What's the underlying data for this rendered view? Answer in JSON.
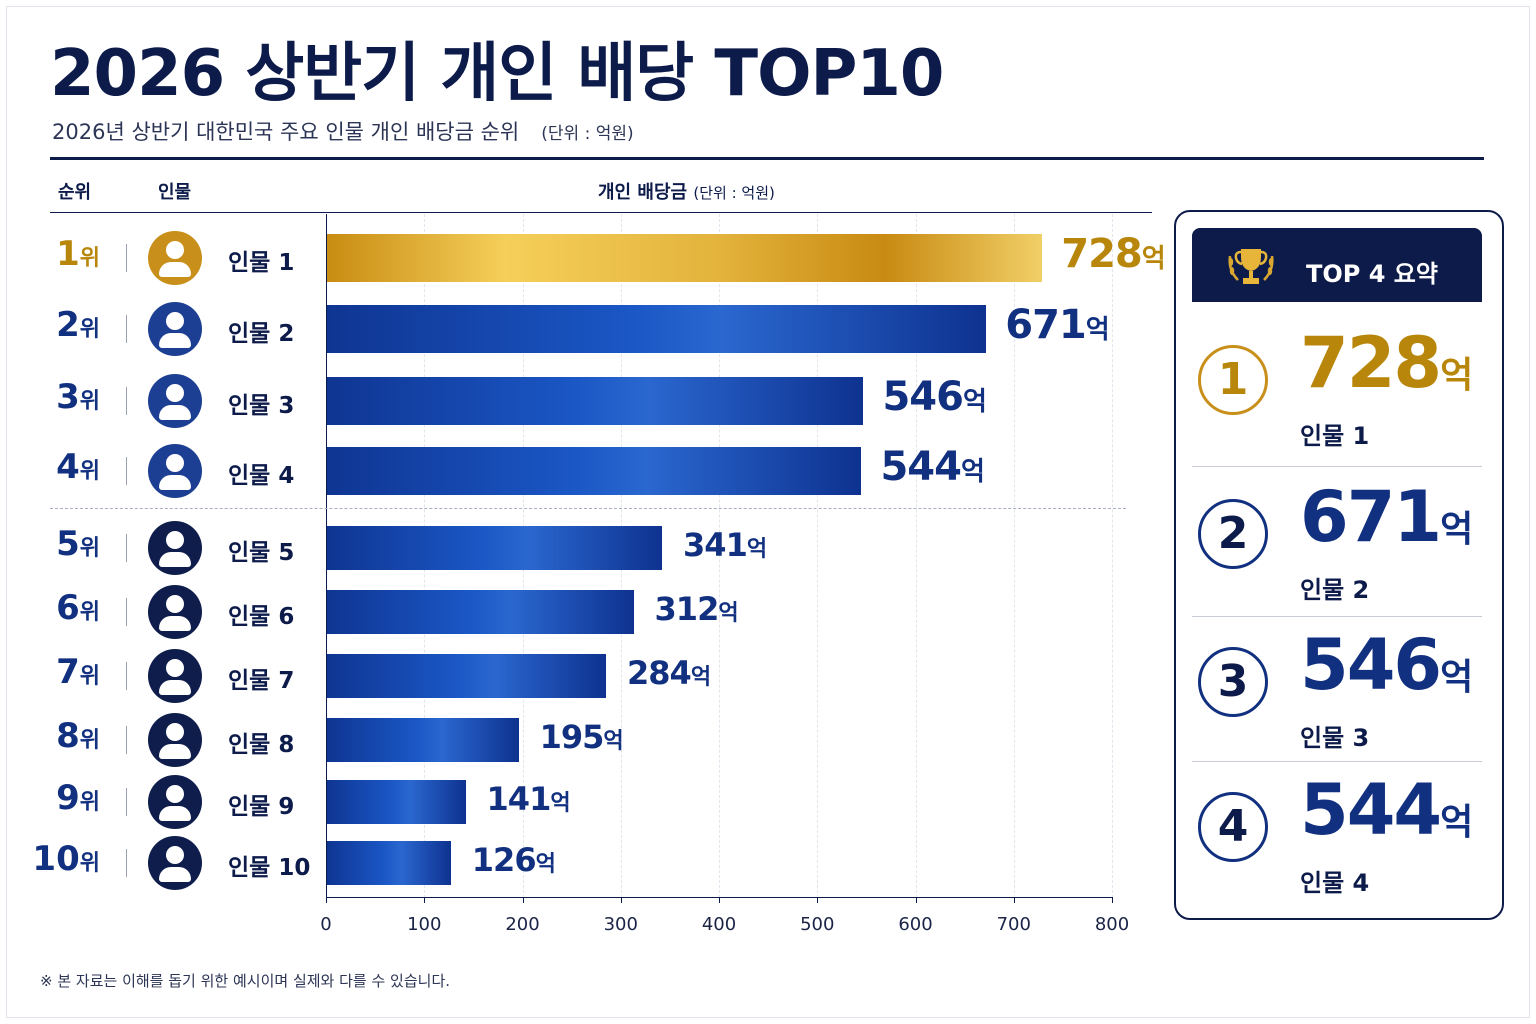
{
  "title": "2026 상반기 개인 배당 TOP10",
  "subtitle": "2026년 상반기 대한민국 주요 인물 개인 배당금 순위",
  "subtitle_unit": "(단위 : 억원)",
  "columns": {
    "rank": "순위",
    "person": "인물",
    "dividend": "개인 배당금",
    "dividend_unit": "(단위 : 억원)"
  },
  "rank_suffix": "위",
  "value_suffix": "억",
  "colors": {
    "navy": "#0d1b4a",
    "blue": "#1a56c4",
    "gold": "#c8901a"
  },
  "chart_data": {
    "type": "bar",
    "orientation": "horizontal",
    "categories": [
      "인물 1",
      "인물 2",
      "인물 3",
      "인물 4",
      "인물 5",
      "인물 6",
      "인물 7",
      "인물 8",
      "인물 9",
      "인물 10"
    ],
    "ranks": [
      "1",
      "2",
      "3",
      "4",
      "5",
      "6",
      "7",
      "8",
      "9",
      "10"
    ],
    "values": [
      728,
      671,
      546,
      544,
      341,
      312,
      284,
      195,
      141,
      126
    ],
    "value_labels": [
      "728",
      "671",
      "546",
      "544",
      "341",
      "312",
      "284",
      "195",
      "141",
      "126"
    ],
    "xlim": [
      0,
      800
    ],
    "xticks": [
      "0",
      "100",
      "200",
      "300",
      "400",
      "500",
      "600",
      "700",
      "800"
    ],
    "grid": "vertical dashed",
    "highlight": "first bar gold"
  },
  "summary": {
    "title": "TOP 4 요약",
    "icon": "trophy-icon",
    "items": [
      {
        "rank": "1",
        "value": "728",
        "name": "인물 1"
      },
      {
        "rank": "2",
        "value": "671",
        "name": "인물 2"
      },
      {
        "rank": "3",
        "value": "546",
        "name": "인물 3"
      },
      {
        "rank": "4",
        "value": "544",
        "name": "인물 4"
      }
    ]
  },
  "footnote": "※ 본 자료는 이해를 돕기 위한 예시이며 실제와 다를 수 있습니다."
}
